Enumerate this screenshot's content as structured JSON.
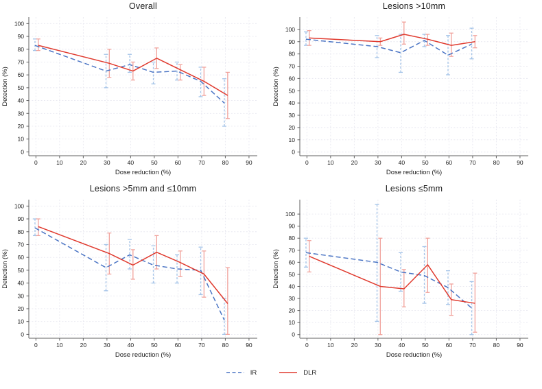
{
  "page": {
    "background": "#ffffff"
  },
  "colors": {
    "ir_line": "#4a74c4",
    "ir_ci": "#a3c3e8",
    "dlr_line": "#e03a2e",
    "dlr_ci": "#f1a29b",
    "grid": "#e8e8f0",
    "axis": "#606060",
    "text": "#1a1a1a"
  },
  "legend": {
    "position": "bottom-center",
    "items": [
      {
        "label": "IR",
        "color": "#4a74c4",
        "dash": true
      },
      {
        "label": "DLR",
        "color": "#e03a2e",
        "dash": false
      }
    ]
  },
  "chart_data": [
    {
      "type": "line",
      "title": "Overall",
      "xlabel": "Dose reduction (%)",
      "ylabel": "Detection (%)",
      "grid": true,
      "xlim": [
        -3,
        93.5
      ],
      "ylim": [
        -3,
        105
      ],
      "xticks": [
        0,
        10,
        20,
        30,
        40,
        50,
        60,
        70,
        80,
        90
      ],
      "yticks": [
        0,
        10,
        20,
        30,
        40,
        50,
        60,
        70,
        80,
        90,
        100
      ],
      "x": [
        0,
        30,
        40,
        50,
        60,
        70,
        80
      ],
      "series": [
        {
          "name": "IR",
          "style": "dashed",
          "color": "#4a74c4",
          "ci_color": "#a3c3e8",
          "x_offset": -0.4,
          "values": [
            83,
            63,
            68,
            62,
            63,
            55,
            38
          ],
          "ci_low": [
            79,
            50,
            62,
            53,
            56,
            43,
            20
          ],
          "ci_high": [
            88,
            76,
            76,
            70,
            70,
            66,
            57
          ]
        },
        {
          "name": "DLR",
          "style": "solid",
          "color": "#e03a2e",
          "ci_color": "#f1a29b",
          "x_offset": 1.0,
          "values": [
            83,
            69,
            63,
            73,
            64,
            55,
            44
          ],
          "ci_low": [
            79,
            58,
            56,
            65,
            56,
            44,
            26
          ],
          "ci_high": [
            88,
            80,
            70,
            81,
            68,
            66,
            62
          ]
        }
      ]
    },
    {
      "type": "line",
      "title": "Lesions >10mm",
      "xlabel": "Dose reduction (%)",
      "ylabel": "Detection (%)",
      "grid": true,
      "xlim": [
        -3,
        93.5
      ],
      "ylim": [
        -3,
        110
      ],
      "xticks": [
        0,
        10,
        20,
        30,
        40,
        50,
        60,
        70,
        80,
        90
      ],
      "yticks": [
        0,
        10,
        20,
        30,
        40,
        50,
        60,
        70,
        80,
        90,
        100
      ],
      "x": [
        0,
        30,
        40,
        50,
        60,
        70
      ],
      "series": [
        {
          "name": "IR",
          "style": "dashed",
          "color": "#4a74c4",
          "ci_color": "#a3c3e8",
          "x_offset": -0.4,
          "values": [
            92,
            86,
            81,
            91,
            79,
            88
          ],
          "ci_low": [
            87,
            77,
            65,
            86,
            63,
            76
          ],
          "ci_high": [
            98,
            95,
            96,
            96,
            95,
            101
          ]
        },
        {
          "name": "DLR",
          "style": "solid",
          "color": "#e03a2e",
          "ci_color": "#f1a29b",
          "x_offset": 1.0,
          "values": [
            93,
            90,
            96,
            92,
            87,
            90
          ],
          "ci_low": [
            87,
            87,
            88,
            87,
            78,
            85
          ],
          "ci_high": [
            99,
            93,
            106,
            96,
            97,
            95
          ]
        }
      ]
    },
    {
      "type": "line",
      "title": "Lesions >5mm and ≤10mm",
      "xlabel": "Dose reduction (%)",
      "ylabel": "Detection (%)",
      "grid": true,
      "xlim": [
        -3,
        93.5
      ],
      "ylim": [
        -3,
        105
      ],
      "xticks": [
        0,
        10,
        20,
        30,
        40,
        50,
        60,
        70,
        80,
        90
      ],
      "yticks": [
        0,
        10,
        20,
        30,
        40,
        50,
        60,
        70,
        80,
        90,
        100
      ],
      "x": [
        0,
        30,
        40,
        50,
        60,
        70,
        80
      ],
      "series": [
        {
          "name": "IR",
          "style": "dashed",
          "color": "#4a74c4",
          "ci_color": "#a3c3e8",
          "x_offset": -0.4,
          "values": [
            83,
            52,
            62,
            54,
            51,
            50,
            11
          ],
          "ci_low": [
            77,
            34,
            51,
            40,
            40,
            31,
            0
          ],
          "ci_high": [
            90,
            70,
            74,
            69,
            62,
            68,
            28
          ]
        },
        {
          "name": "DLR",
          "style": "solid",
          "color": "#e03a2e",
          "ci_color": "#f1a29b",
          "x_offset": 1.0,
          "values": [
            84,
            63,
            54,
            64,
            56,
            47,
            24
          ],
          "ci_low": [
            77,
            47,
            43,
            51,
            45,
            29,
            0
          ],
          "ci_high": [
            90,
            79,
            66,
            77,
            65,
            65,
            52
          ]
        }
      ]
    },
    {
      "type": "line",
      "title": "Lesions ≤5mm",
      "xlabel": "Dose reduction (%)",
      "ylabel": "Detection (%)",
      "grid": true,
      "xlim": [
        -3,
        93.5
      ],
      "ylim": [
        -3,
        112
      ],
      "xticks": [
        0,
        10,
        20,
        30,
        40,
        50,
        60,
        70,
        80,
        90
      ],
      "yticks": [
        0,
        10,
        20,
        30,
        40,
        50,
        60,
        70,
        80,
        90,
        100
      ],
      "x": [
        0,
        30,
        40,
        50,
        60,
        70
      ],
      "series": [
        {
          "name": "IR",
          "style": "dashed",
          "color": "#4a74c4",
          "ci_color": "#a3c3e8",
          "x_offset": -0.4,
          "values": [
            68,
            60,
            52,
            49,
            39,
            22
          ],
          "ci_low": [
            56,
            11,
            36,
            26,
            25,
            0
          ],
          "ci_high": [
            80,
            108,
            68,
            73,
            53,
            44
          ]
        },
        {
          "name": "DLR",
          "style": "solid",
          "color": "#e03a2e",
          "ci_color": "#f1a29b",
          "x_offset": 1.0,
          "values": [
            65,
            40,
            38,
            58,
            29,
            26
          ],
          "ci_low": [
            52,
            0,
            23,
            35,
            16,
            2
          ],
          "ci_high": [
            78,
            80,
            54,
            80,
            42,
            51
          ]
        }
      ]
    }
  ]
}
